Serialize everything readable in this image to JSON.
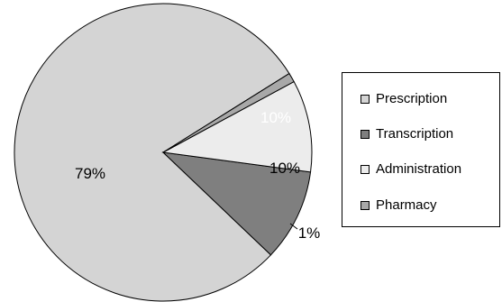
{
  "chart_data": {
    "type": "pie",
    "series": [
      {
        "name": "Prescription",
        "value": 79,
        "label": "79%",
        "color": "#d4d4d4"
      },
      {
        "name": "Transcription",
        "value": 10,
        "label": "10%",
        "color": "#7f7f7f"
      },
      {
        "name": "Administration",
        "value": 10,
        "label": "10%",
        "color": "#ececec"
      },
      {
        "name": "Pharmacy",
        "value": 1,
        "label": "1%",
        "color": "#a8a8a8"
      }
    ],
    "legend_position": "right",
    "label_colors": {
      "on_dark": "#ffffff",
      "on_light": "#000000"
    }
  }
}
